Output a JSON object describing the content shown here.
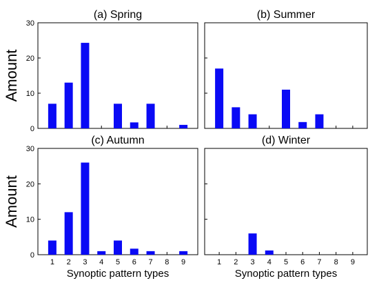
{
  "colors": {
    "bar": "#0a0af5",
    "axis": "#000000",
    "background": "#ffffff"
  },
  "chart_data": [
    {
      "type": "bar",
      "title": "(a) Spring",
      "categories": [
        "1",
        "2",
        "3",
        "4",
        "5",
        "6",
        "7",
        "8",
        "9"
      ],
      "values": [
        7,
        13,
        24.3,
        0,
        7,
        1.7,
        7,
        0,
        1
      ],
      "ylim": [
        0,
        30
      ],
      "yticks": [
        0,
        10,
        20,
        30
      ],
      "ylabel": "Amount",
      "xlabel": "",
      "show_x_tick_labels": false,
      "show_y_tick_labels": true,
      "grid": false
    },
    {
      "type": "bar",
      "title": "(b) Summer",
      "categories": [
        "1",
        "2",
        "3",
        "4",
        "5",
        "6",
        "7",
        "8",
        "9"
      ],
      "values": [
        17,
        6,
        4,
        0,
        11,
        1.8,
        4,
        0,
        0
      ],
      "ylim": [
        0,
        30
      ],
      "yticks": [
        0,
        10,
        20,
        30
      ],
      "ylabel": "",
      "xlabel": "",
      "show_x_tick_labels": false,
      "show_y_tick_labels": false,
      "grid": false
    },
    {
      "type": "bar",
      "title": "(c) Autumn",
      "categories": [
        "1",
        "2",
        "3",
        "4",
        "5",
        "6",
        "7",
        "8",
        "9"
      ],
      "values": [
        4,
        12,
        26,
        1,
        4,
        1.7,
        1,
        0,
        1
      ],
      "ylim": [
        0,
        30
      ],
      "yticks": [
        0,
        10,
        20,
        30
      ],
      "ylabel": "Amount",
      "xlabel": "Synoptic pattern types",
      "show_x_tick_labels": true,
      "show_y_tick_labels": true,
      "grid": false
    },
    {
      "type": "bar",
      "title": "(d) Winter",
      "categories": [
        "1",
        "2",
        "3",
        "4",
        "5",
        "6",
        "7",
        "8",
        "9"
      ],
      "values": [
        0,
        0,
        6,
        1.2,
        0,
        0,
        0,
        0,
        0
      ],
      "ylim": [
        0,
        30
      ],
      "yticks": [
        0,
        10,
        20,
        30
      ],
      "ylabel": "",
      "xlabel": "Synoptic pattern types",
      "show_x_tick_labels": true,
      "show_y_tick_labels": false,
      "grid": false
    }
  ]
}
